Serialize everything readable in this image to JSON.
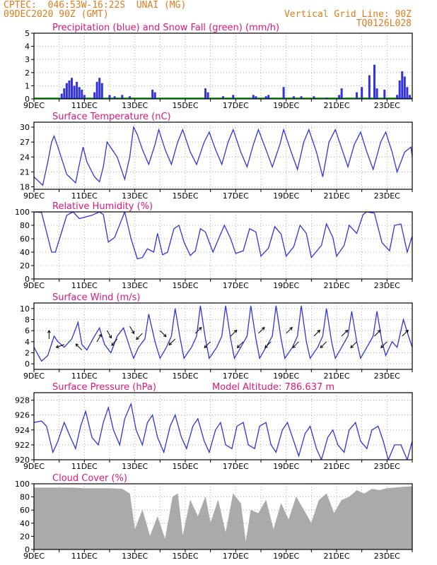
{
  "header": {
    "line1": "CPTEC:  046:53W-16:22S  UNAI (MG)",
    "line2": "09DEC2020 90Z (GMT)",
    "grid_note": "Vertical Grid Line: 90Z",
    "code": "TQ0126L028"
  },
  "colors": {
    "header": "#e07b1c",
    "title": "#e0157a",
    "series": "#3333dd",
    "snow": "#22bb22",
    "cloud": "#aaaaaa"
  },
  "x_axis": {
    "day_range": [
      9,
      24
    ],
    "labels": [
      "9DEC",
      "11DEC",
      "13DEC",
      "15DEC",
      "17DEC",
      "19DEC",
      "21DEC",
      "23DEC"
    ],
    "label_days": [
      9,
      11,
      13,
      15,
      17,
      19,
      21,
      23
    ]
  },
  "panel_titles": {
    "precip": "Precipitation (blue) and Snow Fall (green) (mm/h)",
    "temp": "Surface Temperature (nC)",
    "rh": "Relative Humidity (%)",
    "wind": "Surface Wind (m/s)",
    "pres": "Surface Pressure (hPa)",
    "model_alt": "Model Altitude: 786.637 m",
    "cloud": "Cloud Cover (%)"
  },
  "chart_data": [
    {
      "type": "bar",
      "title": "Precipitation (blue) and Snow Fall (green) (mm/h)",
      "ylim": [
        0,
        5
      ],
      "yticks": [
        0,
        1,
        2,
        3,
        4,
        5
      ],
      "series": [
        {
          "name": "Precipitation",
          "x_days": [
            10.1,
            10.2,
            10.3,
            10.4,
            10.5,
            10.6,
            10.7,
            10.8,
            10.9,
            11.0,
            11.4,
            11.5,
            11.6,
            11.7,
            12.0,
            12.2,
            12.5,
            12.8,
            13.7,
            13.8,
            15.8,
            15.9,
            16.5,
            16.9,
            17.7,
            17.8,
            18.2,
            18.3,
            18.9,
            19.3,
            19.6,
            20.1,
            20.6,
            21.1,
            21.2,
            21.8,
            22.0,
            22.3,
            22.5,
            22.6,
            22.9,
            23.4,
            23.5,
            23.6,
            23.7,
            23.8,
            23.9
          ],
          "values": [
            0.4,
            0.8,
            1.2,
            1.4,
            1.6,
            1.0,
            1.3,
            0.9,
            0.7,
            0.3,
            0.5,
            1.3,
            1.6,
            1.2,
            0.3,
            0.2,
            0.3,
            0.2,
            0.7,
            0.5,
            0.8,
            0.5,
            0.2,
            0.3,
            0.3,
            0.2,
            0.2,
            0.3,
            0.9,
            0.2,
            0.2,
            0.2,
            0.1,
            0.3,
            0.8,
            0.5,
            0.9,
            1.8,
            2.6,
            0.8,
            0.7,
            0.3,
            1.4,
            2.1,
            1.7,
            0.9,
            0.3
          ]
        },
        {
          "name": "Snow Fall",
          "x_days": [],
          "values": []
        }
      ]
    },
    {
      "type": "line",
      "title": "Surface Temperature (nC)",
      "ylim": [
        17.5,
        31
      ],
      "yticks": [
        18,
        21,
        24,
        27,
        30
      ],
      "series": [
        {
          "name": "Temperature",
          "x_days": [
            9.0,
            9.35,
            9.55,
            9.7,
            9.8,
            9.95,
            10.3,
            10.65,
            10.8,
            10.95,
            11.1,
            11.4,
            11.6,
            11.75,
            11.9,
            12.3,
            12.6,
            12.8,
            12.95,
            13.1,
            13.3,
            13.55,
            13.8,
            13.95,
            14.2,
            14.45,
            14.7,
            14.9,
            15.2,
            15.45,
            15.75,
            15.95,
            16.2,
            16.45,
            16.7,
            16.9,
            17.2,
            17.45,
            17.7,
            17.9,
            18.2,
            18.45,
            18.75,
            18.9,
            19.2,
            19.45,
            19.7,
            19.9,
            20.2,
            20.45,
            20.7,
            20.95,
            21.25,
            21.45,
            21.7,
            21.95,
            22.2,
            22.45,
            22.75,
            22.95,
            23.2,
            23.4,
            23.7,
            23.95,
            24.0
          ],
          "values": [
            20.0,
            18.3,
            23.0,
            27.0,
            28.2,
            26.0,
            20.5,
            18.8,
            22.5,
            26.0,
            23.0,
            20.0,
            19.0,
            22.0,
            27.0,
            24.0,
            19.5,
            24.0,
            30.0,
            28.5,
            25.5,
            22.5,
            26.5,
            29.5,
            25.5,
            22.5,
            27.0,
            29.5,
            25.0,
            22.5,
            27.0,
            29.0,
            25.5,
            22.5,
            27.0,
            29.5,
            25.0,
            22.0,
            26.5,
            29.5,
            25.5,
            22.0,
            26.5,
            29.5,
            25.0,
            21.5,
            27.0,
            29.5,
            25.0,
            20.0,
            27.0,
            29.5,
            25.0,
            22.0,
            26.5,
            29.0,
            25.0,
            21.5,
            27.0,
            29.0,
            25.0,
            21.0,
            25.0,
            26.0,
            24.0
          ]
        }
      ]
    },
    {
      "type": "line",
      "title": "Relative Humidity (%)",
      "ylim": [
        0,
        100
      ],
      "yticks": [
        0,
        20,
        40,
        60,
        80,
        100
      ],
      "series": [
        {
          "name": "Relative Humidity",
          "x_days": [
            9.0,
            9.3,
            9.5,
            9.7,
            9.85,
            10.1,
            10.3,
            10.55,
            10.8,
            11.0,
            11.3,
            11.6,
            11.75,
            11.95,
            12.2,
            12.6,
            12.85,
            13.1,
            13.3,
            13.5,
            13.75,
            13.9,
            14.1,
            14.3,
            14.55,
            14.75,
            14.95,
            15.2,
            15.4,
            15.6,
            15.8,
            16.1,
            16.3,
            16.55,
            16.8,
            17.0,
            17.3,
            17.55,
            17.8,
            18.0,
            18.3,
            18.55,
            18.8,
            19.0,
            19.3,
            19.55,
            19.8,
            20.0,
            20.4,
            20.6,
            20.85,
            21.0,
            21.3,
            21.5,
            21.8,
            22.05,
            22.2,
            22.5,
            22.8,
            23.1,
            23.3,
            23.55,
            23.8,
            24.0
          ],
          "values": [
            100,
            99,
            70,
            40,
            40,
            70,
            95,
            100,
            90,
            92,
            95,
            100,
            96,
            55,
            62,
            100,
            60,
            30,
            32,
            45,
            40,
            68,
            36,
            40,
            75,
            80,
            55,
            35,
            42,
            75,
            70,
            40,
            58,
            80,
            60,
            38,
            42,
            75,
            70,
            34,
            46,
            78,
            67,
            34,
            48,
            80,
            68,
            32,
            50,
            82,
            62,
            34,
            50,
            80,
            68,
            96,
            100,
            98,
            54,
            42,
            80,
            82,
            40,
            64
          ]
        }
      ]
    },
    {
      "type": "line",
      "title": "Surface Wind (m/s)",
      "ylim": [
        -1,
        11
      ],
      "yticks": [
        0,
        2,
        4,
        6,
        8,
        10
      ],
      "series": [
        {
          "name": "Wind speed",
          "x_days": [
            9.0,
            9.3,
            9.55,
            9.8,
            9.95,
            10.2,
            10.5,
            10.75,
            10.9,
            11.1,
            11.4,
            11.6,
            11.8,
            12.05,
            12.3,
            12.55,
            12.8,
            12.95,
            13.15,
            13.4,
            13.55,
            13.8,
            14.0,
            14.25,
            14.45,
            14.6,
            14.8,
            14.95,
            15.25,
            15.45,
            15.6,
            15.8,
            15.95,
            16.25,
            16.45,
            16.6,
            16.8,
            16.95,
            17.2,
            17.45,
            17.6,
            17.8,
            17.95,
            18.2,
            18.45,
            18.6,
            18.8,
            18.95,
            19.25,
            19.45,
            19.6,
            19.8,
            19.95,
            20.25,
            20.45,
            20.6,
            20.8,
            20.95,
            21.2,
            21.45,
            21.6,
            21.8,
            21.95,
            22.2,
            22.45,
            22.6,
            22.8,
            22.95,
            23.2,
            23.4,
            23.65,
            23.85,
            24.0
          ],
          "values": [
            3.0,
            0.5,
            1.5,
            5.0,
            4.0,
            3.0,
            4.5,
            7.5,
            3.5,
            2.5,
            5.0,
            6.5,
            3.5,
            2.0,
            5.0,
            6.5,
            3.0,
            1.0,
            3.0,
            4.5,
            9.0,
            4.0,
            1.0,
            3.0,
            5.0,
            10.0,
            4.5,
            1.0,
            3.0,
            5.0,
            10.5,
            4.5,
            1.0,
            3.0,
            5.0,
            10.5,
            4.5,
            1.0,
            3.0,
            5.0,
            10.5,
            4.5,
            1.0,
            3.0,
            5.0,
            10.5,
            4.5,
            1.0,
            3.0,
            5.0,
            10.5,
            4.0,
            1.0,
            3.0,
            5.0,
            10.0,
            4.0,
            1.0,
            3.0,
            5.0,
            9.5,
            4.0,
            1.0,
            3.0,
            5.0,
            9.5,
            4.0,
            1.5,
            4.0,
            3.0,
            8.0,
            5.0,
            3.0
          ]
        }
      ]
    },
    {
      "type": "line",
      "title": "Surface Pressure (hPa)",
      "ylim": [
        920,
        929
      ],
      "yticks": [
        920,
        922,
        924,
        926,
        928
      ],
      "series": [
        {
          "name": "Surface Pressure",
          "x_days": [
            9.0,
            9.3,
            9.5,
            9.75,
            9.95,
            10.2,
            10.45,
            10.65,
            10.85,
            11.05,
            11.3,
            11.55,
            11.75,
            11.95,
            12.15,
            12.4,
            12.6,
            12.85,
            13.05,
            13.3,
            13.5,
            13.7,
            13.9,
            14.15,
            14.4,
            14.6,
            14.85,
            15.05,
            15.3,
            15.5,
            15.75,
            15.95,
            16.2,
            16.4,
            16.6,
            16.85,
            17.05,
            17.3,
            17.5,
            17.75,
            17.95,
            18.2,
            18.4,
            18.6,
            18.85,
            19.05,
            19.3,
            19.5,
            19.75,
            19.95,
            20.2,
            20.4,
            20.65,
            20.85,
            21.05,
            21.3,
            21.5,
            21.75,
            21.95,
            22.2,
            22.4,
            22.65,
            22.85,
            23.05,
            23.3,
            23.55,
            23.8,
            24.0
          ],
          "values": [
            925.0,
            925.2,
            924.5,
            921.0,
            922.5,
            925.0,
            923.0,
            921.5,
            924.5,
            926.5,
            923.0,
            922.0,
            925.0,
            927.0,
            924.0,
            922.0,
            925.5,
            927.5,
            924.0,
            922.0,
            925.0,
            926.0,
            923.0,
            921.0,
            924.5,
            926.0,
            923.0,
            921.5,
            924.5,
            925.5,
            922.5,
            921.0,
            924.0,
            925.0,
            922.0,
            921.5,
            924.5,
            925.0,
            922.0,
            921.5,
            924.5,
            925.0,
            922.0,
            921.0,
            924.0,
            925.0,
            922.5,
            920.5,
            923.5,
            924.5,
            921.5,
            920.0,
            923.0,
            924.0,
            922.0,
            921.0,
            924.0,
            925.0,
            922.5,
            921.5,
            924.0,
            924.5,
            922.5,
            920.0,
            922.0,
            922.0,
            920.0,
            922.5
          ]
        }
      ]
    },
    {
      "type": "area",
      "title": "Cloud Cover (%)",
      "ylim": [
        0,
        100
      ],
      "yticks": [
        0,
        20,
        40,
        60,
        80,
        100
      ],
      "series": [
        {
          "name": "Cloud Cover",
          "x_days": [
            9.0,
            9.5,
            10.0,
            10.5,
            11.0,
            11.5,
            12.0,
            12.5,
            12.8,
            13.0,
            13.3,
            13.6,
            13.9,
            14.2,
            14.5,
            14.7,
            14.9,
            15.2,
            15.5,
            15.8,
            16.0,
            16.3,
            16.6,
            16.9,
            17.2,
            17.4,
            17.6,
            17.9,
            18.2,
            18.5,
            18.8,
            19.1,
            19.4,
            19.7,
            20.0,
            20.3,
            20.6,
            20.9,
            21.2,
            21.5,
            21.8,
            22.1,
            22.4,
            22.7,
            23.0,
            23.3,
            23.6,
            24.0
          ],
          "values": [
            94,
            94,
            94,
            94,
            93,
            93,
            93,
            92,
            85,
            30,
            60,
            20,
            50,
            15,
            80,
            85,
            20,
            75,
            50,
            80,
            40,
            75,
            25,
            85,
            70,
            10,
            60,
            55,
            75,
            30,
            70,
            45,
            80,
            60,
            40,
            75,
            85,
            55,
            75,
            80,
            90,
            85,
            92,
            90,
            93,
            94,
            95,
            96
          ]
        }
      ]
    }
  ]
}
